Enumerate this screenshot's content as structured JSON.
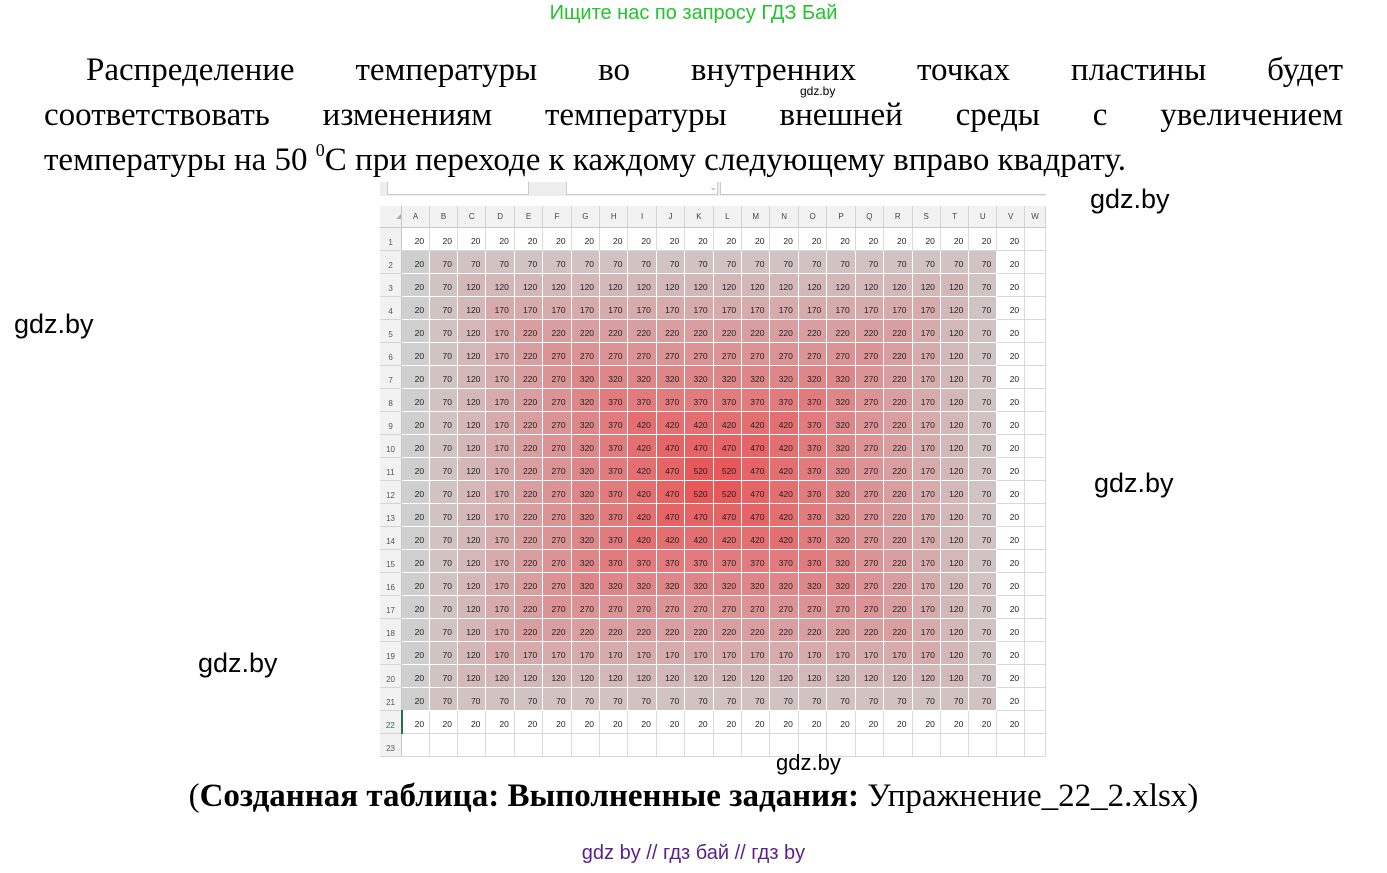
{
  "top_banner": "Ищите нас по запросу ГДЗ Бай",
  "paragraph": {
    "line1": "Распределение температуры во внутренних точках пластины будет",
    "line2": "соответствовать изменениям температуры внешней среды с увеличением",
    "line3_before": "температуры на 50 ",
    "line3_sup": "0",
    "line3_after": "С при переходе к каждому следующему вправо квадрату."
  },
  "watermarks": {
    "small": "gdz.by",
    "right_top": "gdz.by",
    "left_upper": "gdz.by",
    "right_mid": "gdz.by",
    "left_lower": "gdz.by",
    "bottom_sheet": "gdz.by"
  },
  "spreadsheet": {
    "columns": [
      "A",
      "B",
      "C",
      "D",
      "E",
      "F",
      "G",
      "H",
      "I",
      "J",
      "K",
      "L",
      "M",
      "N",
      "O",
      "P",
      "Q",
      "R",
      "S",
      "T",
      "U",
      "V",
      "W"
    ],
    "row_numbers": [
      1,
      2,
      3,
      4,
      5,
      6,
      7,
      8,
      9,
      10,
      11,
      12,
      13,
      14,
      15,
      16,
      17,
      18,
      19,
      20,
      21,
      22,
      23
    ],
    "selected_row": 22,
    "heat_colors": {
      "low": "#cfcfcf",
      "high": "#e8575a"
    },
    "rows": [
      [
        20,
        20,
        20,
        20,
        20,
        20,
        20,
        20,
        20,
        20,
        20,
        20,
        20,
        20,
        20,
        20,
        20,
        20,
        20,
        20,
        20,
        20,
        ""
      ],
      [
        20,
        70,
        70,
        70,
        70,
        70,
        70,
        70,
        70,
        70,
        70,
        70,
        70,
        70,
        70,
        70,
        70,
        70,
        70,
        70,
        70,
        20,
        ""
      ],
      [
        20,
        70,
        120,
        120,
        120,
        120,
        120,
        120,
        120,
        120,
        120,
        120,
        120,
        120,
        120,
        120,
        120,
        120,
        120,
        120,
        70,
        20,
        ""
      ],
      [
        20,
        70,
        120,
        170,
        170,
        170,
        170,
        170,
        170,
        170,
        170,
        170,
        170,
        170,
        170,
        170,
        170,
        170,
        170,
        120,
        70,
        20,
        ""
      ],
      [
        20,
        70,
        120,
        170,
        220,
        220,
        220,
        220,
        220,
        220,
        220,
        220,
        220,
        220,
        220,
        220,
        220,
        220,
        170,
        120,
        70,
        20,
        ""
      ],
      [
        20,
        70,
        120,
        170,
        220,
        270,
        270,
        270,
        270,
        270,
        270,
        270,
        270,
        270,
        270,
        270,
        270,
        220,
        170,
        120,
        70,
        20,
        ""
      ],
      [
        20,
        70,
        120,
        170,
        220,
        270,
        320,
        320,
        320,
        320,
        320,
        320,
        320,
        320,
        320,
        320,
        270,
        220,
        170,
        120,
        70,
        20,
        ""
      ],
      [
        20,
        70,
        120,
        170,
        220,
        270,
        320,
        370,
        370,
        370,
        370,
        370,
        370,
        370,
        370,
        320,
        270,
        220,
        170,
        120,
        70,
        20,
        ""
      ],
      [
        20,
        70,
        120,
        170,
        220,
        270,
        320,
        370,
        420,
        420,
        420,
        420,
        420,
        420,
        370,
        320,
        270,
        220,
        170,
        120,
        70,
        20,
        ""
      ],
      [
        20,
        70,
        120,
        170,
        220,
        270,
        320,
        370,
        420,
        470,
        470,
        470,
        470,
        420,
        370,
        320,
        270,
        220,
        170,
        120,
        70,
        20,
        ""
      ],
      [
        20,
        70,
        120,
        170,
        220,
        270,
        320,
        370,
        420,
        470,
        520,
        520,
        470,
        420,
        370,
        320,
        270,
        220,
        170,
        120,
        70,
        20,
        ""
      ],
      [
        20,
        70,
        120,
        170,
        220,
        270,
        320,
        370,
        420,
        470,
        520,
        520,
        470,
        420,
        370,
        320,
        270,
        220,
        170,
        120,
        70,
        20,
        ""
      ],
      [
        20,
        70,
        120,
        170,
        220,
        270,
        320,
        370,
        420,
        470,
        470,
        470,
        470,
        420,
        370,
        320,
        270,
        220,
        170,
        120,
        70,
        20,
        ""
      ],
      [
        20,
        70,
        120,
        170,
        220,
        270,
        320,
        370,
        420,
        420,
        420,
        420,
        420,
        420,
        370,
        320,
        270,
        220,
        170,
        120,
        70,
        20,
        ""
      ],
      [
        20,
        70,
        120,
        170,
        220,
        270,
        320,
        370,
        370,
        370,
        370,
        370,
        370,
        370,
        370,
        320,
        270,
        220,
        170,
        120,
        70,
        20,
        ""
      ],
      [
        20,
        70,
        120,
        170,
        220,
        270,
        320,
        320,
        320,
        320,
        320,
        320,
        320,
        320,
        320,
        320,
        270,
        220,
        170,
        120,
        70,
        20,
        ""
      ],
      [
        20,
        70,
        120,
        170,
        220,
        270,
        270,
        270,
        270,
        270,
        270,
        270,
        270,
        270,
        270,
        270,
        270,
        220,
        170,
        120,
        70,
        20,
        ""
      ],
      [
        20,
        70,
        120,
        170,
        220,
        220,
        220,
        220,
        220,
        220,
        220,
        220,
        220,
        220,
        220,
        220,
        220,
        220,
        170,
        120,
        70,
        20,
        ""
      ],
      [
        20,
        70,
        120,
        170,
        170,
        170,
        170,
        170,
        170,
        170,
        170,
        170,
        170,
        170,
        170,
        170,
        170,
        170,
        170,
        120,
        70,
        20,
        ""
      ],
      [
        20,
        70,
        120,
        120,
        120,
        120,
        120,
        120,
        120,
        120,
        120,
        120,
        120,
        120,
        120,
        120,
        120,
        120,
        120,
        120,
        70,
        20,
        ""
      ],
      [
        20,
        70,
        70,
        70,
        70,
        70,
        70,
        70,
        70,
        70,
        70,
        70,
        70,
        70,
        70,
        70,
        70,
        70,
        70,
        70,
        70,
        20,
        ""
      ],
      [
        20,
        20,
        20,
        20,
        20,
        20,
        20,
        20,
        20,
        20,
        20,
        20,
        20,
        20,
        20,
        20,
        20,
        20,
        20,
        20,
        20,
        20,
        ""
      ],
      [
        "",
        "",
        "",
        "",
        "",
        "",
        "",
        "",
        "",
        "",
        "",
        "",
        "",
        "",
        "",
        "",
        "",
        "",
        "",
        "",
        "",
        "",
        ""
      ]
    ]
  },
  "caption": {
    "open": "(",
    "bold": "Созданная таблица: Выполненные задания:",
    "normal": " Упражнение_22_2.xlsx)"
  },
  "footer": "gdz by  //  гдз бай  //  гдз by"
}
